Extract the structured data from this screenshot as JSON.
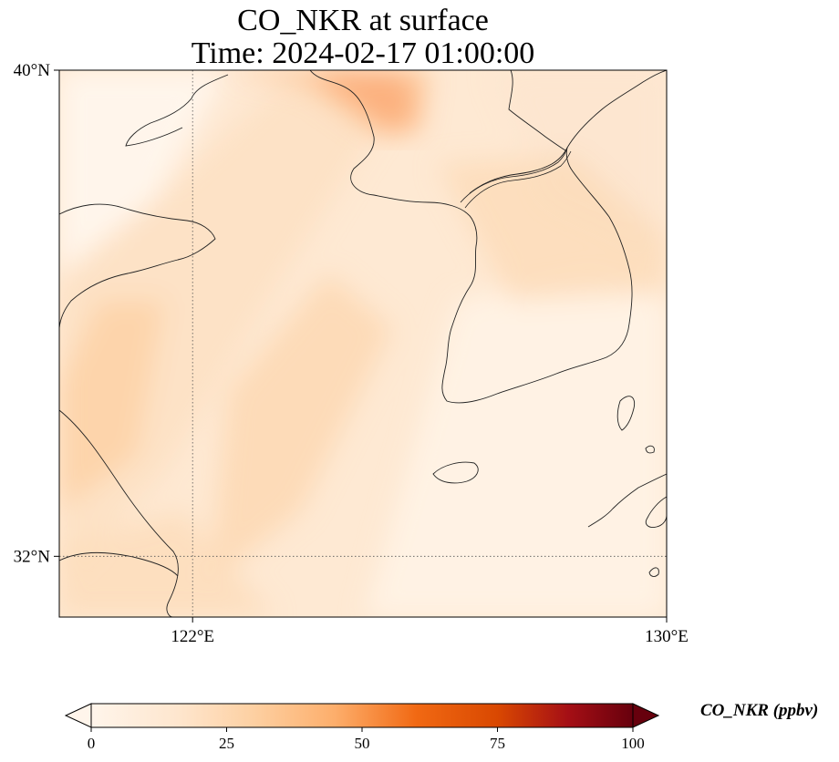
{
  "title": {
    "line1": "CO_NKR at surface",
    "line2": "Time: 2024-02-17 01:00:00"
  },
  "map": {
    "lon_range": [
      119.75,
      130
    ],
    "lat_range": [
      31,
      40
    ],
    "grid": {
      "lon_lines": [
        122
      ],
      "lat_lines": [
        32
      ],
      "style": "dotted"
    },
    "lat_ticks": [
      {
        "value": 40,
        "label": "40°N"
      },
      {
        "value": 32,
        "label": "32°N"
      }
    ],
    "lon_ticks": [
      {
        "value": 122,
        "label": "122°E"
      },
      {
        "value": 130,
        "label": "130°E"
      }
    ]
  },
  "colorbar": {
    "label": "CO_NKR (ppbv)",
    "min": 0,
    "max": 100,
    "extend": "both",
    "colormap": "Oranges-Red",
    "colors": [
      "#fff5eb",
      "#fee6ce",
      "#fdd0a2",
      "#fdae6b",
      "#f16913",
      "#d94801",
      "#a50f15",
      "#67000d"
    ],
    "ticks": [
      {
        "value": 0,
        "label": "0"
      },
      {
        "value": 25,
        "label": "25"
      },
      {
        "value": 50,
        "label": "50"
      },
      {
        "value": 75,
        "label": "75"
      },
      {
        "value": 100,
        "label": "100"
      }
    ]
  }
}
